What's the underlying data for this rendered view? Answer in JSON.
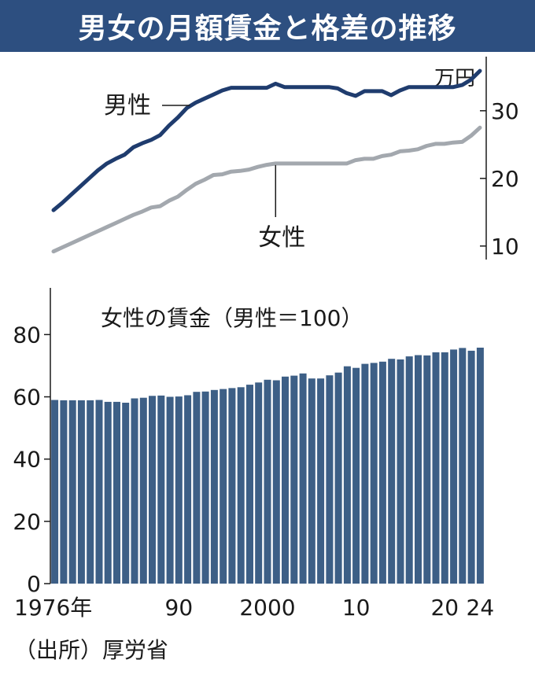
{
  "title": "男女の月額賃金と格差の推移",
  "source": "（出所）厚労省",
  "colors": {
    "title_bg": "#2d4f80",
    "male_line": "#1f3c6e",
    "female_line": "#a3a8ae",
    "bar": "#3d5f86"
  },
  "chart_data": [
    {
      "type": "line",
      "unit_label": "万円",
      "x": [
        1976,
        1977,
        1978,
        1979,
        1980,
        1981,
        1982,
        1983,
        1984,
        1985,
        1986,
        1987,
        1988,
        1989,
        1990,
        1991,
        1992,
        1993,
        1994,
        1995,
        1996,
        1997,
        1998,
        1999,
        2000,
        2001,
        2002,
        2003,
        2004,
        2005,
        2006,
        2007,
        2008,
        2009,
        2010,
        2011,
        2012,
        2013,
        2014,
        2015,
        2016,
        2017,
        2018,
        2019,
        2020,
        2021,
        2022,
        2023,
        2024
      ],
      "ylim": [
        8,
        38
      ],
      "yticks": [
        10,
        20,
        30
      ],
      "series": [
        {
          "name": "男性",
          "values": [
            15.3,
            16.4,
            17.6,
            18.8,
            20.0,
            21.2,
            22.2,
            22.9,
            23.5,
            24.6,
            25.2,
            25.7,
            26.4,
            27.8,
            29.0,
            30.4,
            31.2,
            31.8,
            32.4,
            33.0,
            33.4,
            33.4,
            33.4,
            33.4,
            33.4,
            34.0,
            33.5,
            33.5,
            33.5,
            33.5,
            33.5,
            33.5,
            33.3,
            32.6,
            32.2,
            32.9,
            32.9,
            32.9,
            32.3,
            33.0,
            33.5,
            33.5,
            33.5,
            33.5,
            33.5,
            33.5,
            33.8,
            34.6,
            35.9
          ]
        },
        {
          "name": "女性",
          "values": [
            9.2,
            9.8,
            10.4,
            11.0,
            11.6,
            12.2,
            12.8,
            13.4,
            14.0,
            14.6,
            15.1,
            15.7,
            15.9,
            16.7,
            17.3,
            18.3,
            19.2,
            19.8,
            20.5,
            20.6,
            21.0,
            21.1,
            21.3,
            21.7,
            22.0,
            22.2,
            22.2,
            22.2,
            22.2,
            22.2,
            22.2,
            22.2,
            22.2,
            22.2,
            22.7,
            22.9,
            22.9,
            23.3,
            23.5,
            24.0,
            24.1,
            24.3,
            24.8,
            25.1,
            25.1,
            25.3,
            25.4,
            26.3,
            27.5
          ]
        }
      ]
    },
    {
      "type": "bar",
      "title": "女性の賃金（男性＝100）",
      "ylim": [
        0,
        95
      ],
      "yticks": [
        0,
        20,
        40,
        60,
        80
      ],
      "x_tick_labels": [
        {
          "year": 1976,
          "label": "1976年"
        },
        {
          "year": 1990,
          "label": "90"
        },
        {
          "year": 2000,
          "label": "2000"
        },
        {
          "year": 2010,
          "label": "10"
        },
        {
          "year": 2020,
          "label": "20"
        },
        {
          "year": 2024,
          "label": "24"
        }
      ],
      "x": [
        1976,
        1977,
        1978,
        1979,
        1980,
        1981,
        1982,
        1983,
        1984,
        1985,
        1986,
        1987,
        1988,
        1989,
        1990,
        1991,
        1992,
        1993,
        1994,
        1995,
        1996,
        1997,
        1998,
        1999,
        2000,
        2001,
        2002,
        2003,
        2004,
        2005,
        2006,
        2007,
        2008,
        2009,
        2010,
        2011,
        2012,
        2013,
        2014,
        2015,
        2016,
        2017,
        2018,
        2019,
        2020,
        2021,
        2022,
        2023,
        2024
      ],
      "values": [
        59.0,
        58.9,
        58.9,
        58.9,
        58.9,
        59.0,
        58.4,
        58.4,
        58.1,
        59.5,
        59.7,
        60.3,
        60.4,
        60.0,
        60.1,
        60.5,
        61.6,
        61.7,
        62.2,
        62.5,
        62.8,
        63.1,
        63.9,
        64.6,
        65.5,
        65.3,
        66.5,
        66.8,
        67.5,
        65.9,
        65.9,
        66.9,
        67.8,
        69.8,
        69.3,
        70.6,
        70.9,
        71.3,
        72.2,
        72.0,
        73.0,
        73.4,
        73.3,
        74.3,
        74.3,
        75.2,
        75.7,
        74.8,
        75.8
      ]
    }
  ]
}
